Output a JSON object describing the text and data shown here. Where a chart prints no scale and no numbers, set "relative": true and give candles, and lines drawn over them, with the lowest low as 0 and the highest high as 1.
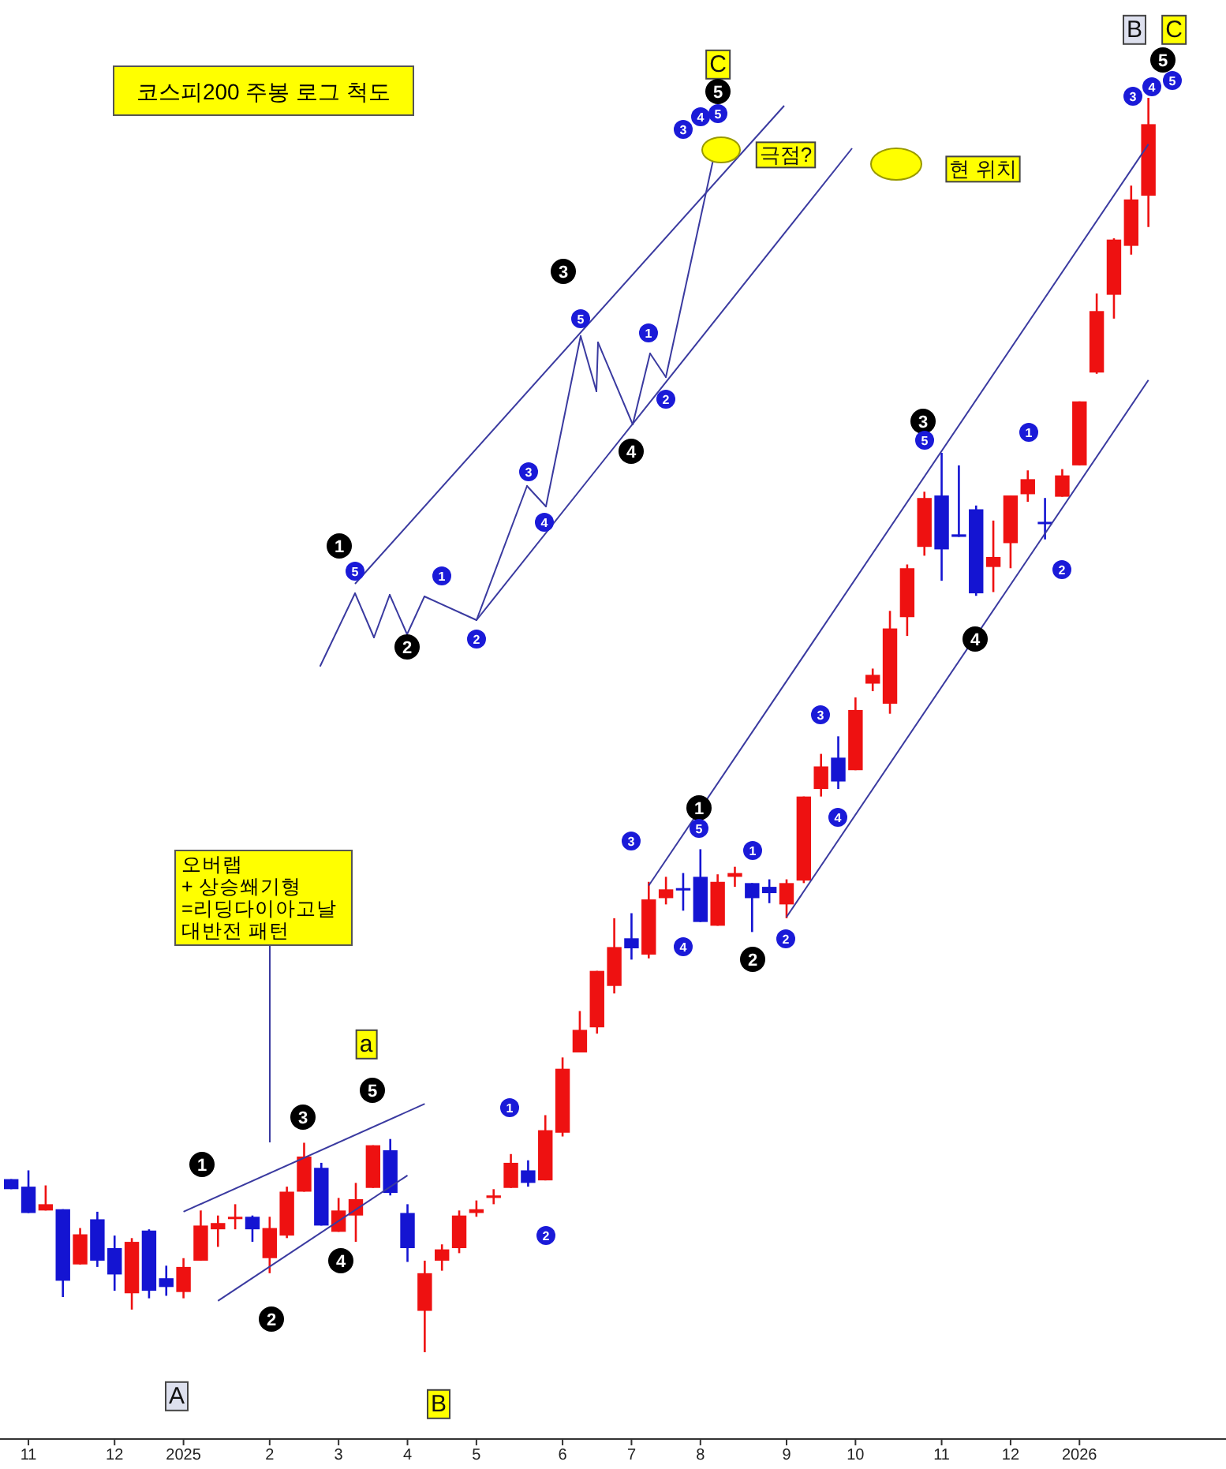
{
  "chart_data": {
    "type": "candlestick",
    "relative": true,
    "tick_labels": "x",
    "title": "코스피200 주봉 로그 척도",
    "categories": [
      null,
      "11",
      null,
      null,
      null,
      null,
      "12",
      null,
      null,
      null,
      "2025",
      null,
      null,
      null,
      null,
      "2",
      null,
      null,
      null,
      "3",
      null,
      null,
      null,
      "4",
      null,
      null,
      null,
      "5",
      null,
      null,
      null,
      null,
      "6",
      null,
      null,
      null,
      "7",
      null,
      null,
      null,
      "8",
      null,
      null,
      null,
      null,
      "9",
      null,
      null,
      null,
      "10",
      null,
      null,
      null,
      null,
      "11",
      null,
      null,
      null,
      "12",
      null,
      null,
      null,
      "2026",
      null,
      null,
      null,
      null
    ],
    "ohlc": [
      [
        0.138,
        0.138,
        0.13,
        0.13
      ],
      [
        0.132,
        0.145,
        0.111,
        0.111
      ],
      [
        0.113,
        0.133,
        0.113,
        0.118
      ],
      [
        0.114,
        0.114,
        0.044,
        0.057
      ],
      [
        0.07,
        0.099,
        0.07,
        0.094
      ],
      [
        0.106,
        0.112,
        0.068,
        0.073
      ],
      [
        0.083,
        0.093,
        0.049,
        0.062
      ],
      [
        0.047,
        0.091,
        0.034,
        0.088
      ],
      [
        0.097,
        0.098,
        0.043,
        0.049
      ],
      [
        0.059,
        0.069,
        0.045,
        0.052
      ],
      [
        0.048,
        0.075,
        0.043,
        0.068
      ],
      [
        0.073,
        0.113,
        0.073,
        0.101
      ],
      [
        0.098,
        0.109,
        0.084,
        0.103
      ],
      [
        0.107,
        0.118,
        0.098,
        0.108
      ],
      [
        0.108,
        0.109,
        0.088,
        0.098
      ],
      [
        0.075,
        0.108,
        0.063,
        0.099
      ],
      [
        0.093,
        0.132,
        0.091,
        0.128
      ],
      [
        0.128,
        0.167,
        0.128,
        0.156
      ],
      [
        0.147,
        0.151,
        0.101,
        0.101
      ],
      [
        0.096,
        0.123,
        0.096,
        0.113
      ],
      [
        0.109,
        0.135,
        0.088,
        0.122
      ],
      [
        0.131,
        0.165,
        0.131,
        0.165
      ],
      [
        0.161,
        0.17,
        0.125,
        0.127
      ],
      [
        0.111,
        0.118,
        0.072,
        0.083
      ],
      [
        0.033,
        0.073,
        0.0,
        0.063
      ],
      [
        0.073,
        0.086,
        0.065,
        0.082
      ],
      [
        0.083,
        0.113,
        0.079,
        0.109
      ],
      [
        0.111,
        0.121,
        0.108,
        0.114
      ],
      [
        0.123,
        0.13,
        0.118,
        0.125
      ],
      [
        0.131,
        0.158,
        0.131,
        0.151
      ],
      [
        0.145,
        0.153,
        0.132,
        0.135
      ],
      [
        0.137,
        0.189,
        0.137,
        0.177
      ],
      [
        0.175,
        0.235,
        0.172,
        0.226
      ],
      [
        0.239,
        0.272,
        0.239,
        0.257
      ],
      [
        0.259,
        0.304,
        0.254,
        0.304
      ],
      [
        0.292,
        0.346,
        0.286,
        0.323
      ],
      [
        0.33,
        0.35,
        0.313,
        0.322
      ],
      [
        0.317,
        0.375,
        0.314,
        0.361
      ],
      [
        0.362,
        0.379,
        0.357,
        0.369
      ],
      [
        0.37,
        0.382,
        0.352,
        0.369
      ],
      [
        0.379,
        0.401,
        0.343,
        0.343
      ],
      [
        0.34,
        0.381,
        0.34,
        0.375
      ],
      [
        0.379,
        0.387,
        0.371,
        0.382
      ],
      [
        0.374,
        0.374,
        0.335,
        0.362
      ],
      [
        0.371,
        0.377,
        0.358,
        0.366
      ],
      [
        0.357,
        0.377,
        0.346,
        0.374
      ],
      [
        0.376,
        0.443,
        0.374,
        0.443
      ],
      [
        0.449,
        0.477,
        0.443,
        0.467
      ],
      [
        0.474,
        0.491,
        0.449,
        0.455
      ],
      [
        0.464,
        0.522,
        0.464,
        0.512
      ],
      [
        0.533,
        0.545,
        0.527,
        0.54
      ],
      [
        0.517,
        0.591,
        0.509,
        0.577
      ],
      [
        0.586,
        0.628,
        0.571,
        0.625
      ],
      [
        0.642,
        0.686,
        0.635,
        0.681
      ],
      [
        0.683,
        0.717,
        0.615,
        0.64
      ],
      [
        0.652,
        0.707,
        0.65,
        0.65
      ],
      [
        0.672,
        0.675,
        0.603,
        0.605
      ],
      [
        0.626,
        0.663,
        0.606,
        0.634
      ],
      [
        0.645,
        0.683,
        0.625,
        0.683
      ],
      [
        0.684,
        0.703,
        0.678,
        0.696
      ],
      [
        0.662,
        0.681,
        0.648,
        0.661
      ],
      [
        0.682,
        0.704,
        0.682,
        0.699
      ],
      [
        0.707,
        0.758,
        0.707,
        0.758
      ],
      [
        0.781,
        0.844,
        0.78,
        0.83
      ],
      [
        0.843,
        0.888,
        0.824,
        0.887
      ],
      [
        0.882,
        0.93,
        0.875,
        0.919
      ],
      [
        0.922,
        1.0,
        0.897,
        0.979
      ]
    ],
    "colors": [
      "#1414d2",
      "#1414d2",
      "#ee1111",
      "#1414d2",
      "#ee1111",
      "#1414d2",
      "#1414d2",
      "#ee1111",
      "#1414d2",
      "#1414d2",
      "#ee1111",
      "#ee1111",
      "#ee1111",
      "#ee1111",
      "#1414d2",
      "#ee1111",
      "#ee1111",
      "#ee1111",
      "#1414d2",
      "#ee1111",
      "#ee1111",
      "#ee1111",
      "#1414d2",
      "#1414d2",
      "#ee1111",
      "#ee1111",
      "#ee1111",
      "#ee1111",
      "#ee1111",
      "#ee1111",
      "#1414d2",
      "#ee1111",
      "#ee1111",
      "#ee1111",
      "#ee1111",
      "#ee1111",
      "#1414d2",
      "#ee1111",
      "#ee1111",
      "#1414d2",
      "#1414d2",
      "#ee1111",
      "#ee1111",
      "#1414d2",
      "#1414d2",
      "#ee1111",
      "#ee1111",
      "#ee1111",
      "#1414d2",
      "#ee1111",
      "#ee1111",
      "#ee1111",
      "#ee1111",
      "#ee1111",
      "#1414d2",
      "#1414d2",
      "#1414d2",
      "#ee1111",
      "#ee1111",
      "#ee1111",
      "#1414d2",
      "#ee1111",
      "#ee1111",
      "#ee1111",
      "#ee1111",
      "#ee1111",
      "#ee1111"
    ],
    "series": [
      {
        "type": "line",
        "color": "#3a3aa0",
        "values": [
          null,
          null,
          null,
          null,
          null,
          null,
          null,
          null,
          null,
          null,
          null,
          null,
          null,
          null,
          null,
          null,
          null,
          null,
          null,
          null,
          null,
          null,
          null,
          null,
          null,
          null,
          null,
          null,
          null,
          null,
          null,
          null,
          null,
          null,
          null,
          null,
          null,
          0.372,
          null,
          null,
          null,
          null,
          null,
          null,
          null,
          null,
          null,
          null,
          null,
          null,
          null,
          null,
          null,
          null,
          null,
          null,
          null,
          null,
          null,
          null,
          null,
          null,
          null,
          null,
          null,
          null,
          0.963
        ]
      },
      {
        "type": "line",
        "color": "#3a3aa0",
        "values": [
          null,
          null,
          null,
          null,
          null,
          null,
          null,
          null,
          null,
          null,
          null,
          null,
          null,
          null,
          null,
          null,
          null,
          null,
          null,
          null,
          null,
          null,
          null,
          null,
          null,
          null,
          null,
          null,
          null,
          null,
          null,
          null,
          null,
          null,
          null,
          null,
          null,
          null,
          null,
          null,
          null,
          null,
          null,
          null,
          null,
          0.347,
          null,
          null,
          null,
          null,
          null,
          null,
          null,
          null,
          null,
          null,
          null,
          null,
          null,
          null,
          null,
          null,
          null,
          null,
          null,
          null,
          0.775
        ]
      },
      {
        "type": "line",
        "color": "#3a3aa0",
        "values": [
          null,
          null,
          null,
          null,
          null,
          null,
          null,
          null,
          null,
          null,
          0.112,
          null,
          null,
          null,
          null,
          null,
          null,
          null,
          null,
          null,
          null,
          null,
          null,
          null,
          0.198,
          null,
          null,
          null,
          null,
          null,
          null,
          null,
          null,
          null,
          null,
          null,
          null,
          null,
          null,
          null,
          null,
          null,
          null,
          null,
          null,
          null,
          null,
          null,
          null,
          null,
          null,
          null,
          null,
          null,
          null,
          null,
          null,
          null,
          null,
          null,
          null,
          null,
          null,
          null,
          null,
          null,
          null
        ]
      },
      {
        "type": "line",
        "color": "#3a3aa0",
        "values": [
          null,
          null,
          null,
          null,
          null,
          null,
          null,
          null,
          null,
          null,
          null,
          null,
          0.041,
          null,
          null,
          null,
          null,
          null,
          null,
          null,
          null,
          null,
          null,
          0.141,
          null,
          null,
          null,
          null,
          null,
          null,
          null,
          null,
          null,
          null,
          null,
          null,
          null,
          null,
          null,
          null,
          null,
          null,
          null,
          null,
          null,
          null,
          null,
          null,
          null,
          null,
          null,
          null,
          null,
          null,
          null,
          null,
          null,
          null,
          null,
          null,
          null,
          null,
          null,
          null,
          null,
          null,
          null
        ]
      }
    ],
    "annotations": [
      "C",
      "극점?",
      "현 위치",
      "B",
      "C",
      "A",
      "B",
      "a",
      "오버랩\n+ 상승쐐기형\n=리딩다이아고날\n대반전 패턴",
      "1",
      "2",
      "3",
      "4",
      "5",
      "1",
      "2",
      "3",
      "4",
      "5",
      "1",
      "2",
      "3",
      "4",
      "5",
      "1",
      "2",
      "3",
      "4",
      "5",
      "1",
      "2",
      "3",
      "4",
      "5",
      "1",
      "2",
      "3",
      "4",
      "5",
      "5",
      "1",
      "2",
      "3",
      "4",
      "5",
      "1",
      "2",
      "3",
      "4",
      "5"
    ]
  }
}
